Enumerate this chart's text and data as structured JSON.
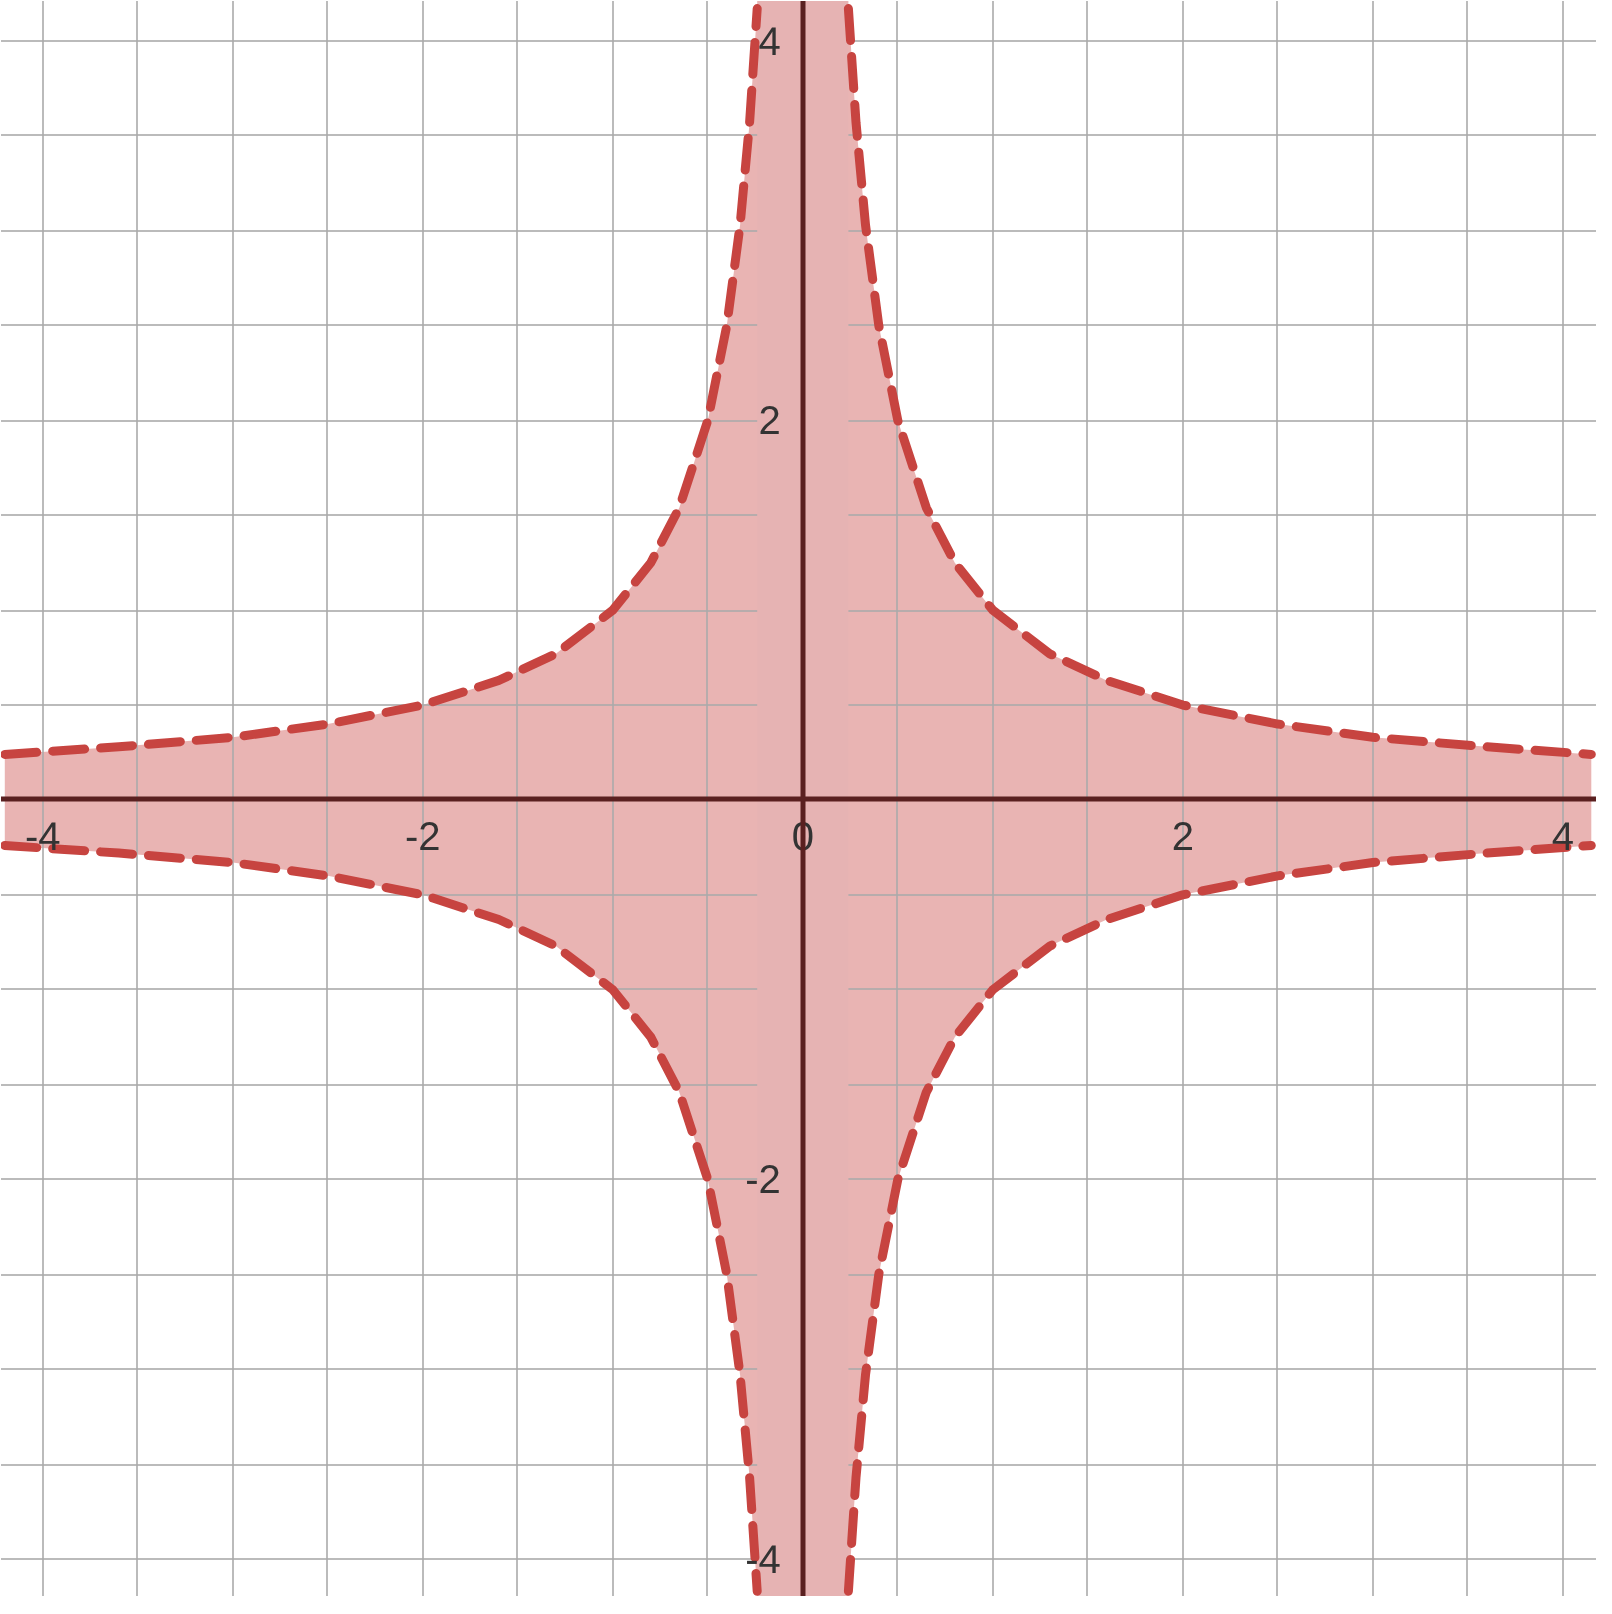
{
  "chart_data": {
    "type": "area",
    "x": [
      -4.2,
      -3.6,
      -3,
      -2.5,
      -2,
      -1.6,
      -1.3,
      -1,
      -0.8,
      -0.65,
      -0.5,
      -0.4,
      -0.33,
      -0.28,
      -0.24,
      0,
      0.24,
      0.28,
      0.33,
      0.4,
      0.5,
      0.65,
      0.8,
      1,
      1.3,
      1.6,
      2,
      2.5,
      3,
      3.6,
      4.15
    ],
    "series": [
      {
        "color": "#c74440",
        "values": [
          0.24,
          0.28,
          0.33,
          0.4,
          0.5,
          0.63,
          0.77,
          1,
          1.25,
          1.54,
          2,
          2.5,
          3.03,
          3.57,
          4.17,
          null,
          4.17,
          3.57,
          3.03,
          2.5,
          2,
          1.54,
          1.25,
          1,
          0.77,
          0.63,
          0.5,
          0.4,
          0.33,
          0.28,
          0.24
        ]
      },
      {
        "color": "#c74440",
        "values": [
          -0.24,
          -0.28,
          -0.33,
          -0.4,
          -0.5,
          -0.63,
          -0.77,
          -1,
          -1.25,
          -1.54,
          -2,
          -2.5,
          -3.03,
          -3.57,
          -4.17,
          null,
          -4.17,
          -3.57,
          -3.03,
          -2.5,
          -2,
          -1.54,
          -1.25,
          -1,
          -0.77,
          -0.63,
          -0.5,
          -0.4,
          -0.33,
          -0.28,
          -0.24
        ]
      }
    ],
    "bands": [
      {
        "axis": "x",
        "from": -0.24,
        "to": 0.24,
        "color": "#e6b3b3"
      }
    ],
    "line_style": "dashed",
    "grid": true,
    "xlim": [
      -4.22,
      4.18
    ],
    "ylim": [
      -4.2,
      4.21
    ],
    "xticks": [
      {
        "value": -4,
        "label": "-4"
      },
      {
        "value": -3.5,
        "label": null
      },
      {
        "value": -3,
        "label": null
      },
      {
        "value": -2.5,
        "label": null
      },
      {
        "value": -2,
        "label": "-2"
      },
      {
        "value": -1.5,
        "label": null
      },
      {
        "value": -1,
        "label": null
      },
      {
        "value": -0.5,
        "label": null
      },
      {
        "value": 0,
        "label": "0"
      },
      {
        "value": 0.5,
        "label": null
      },
      {
        "value": 1,
        "label": null
      },
      {
        "value": 1.5,
        "label": null
      },
      {
        "value": 2,
        "label": "2"
      },
      {
        "value": 2.5,
        "label": null
      },
      {
        "value": 3,
        "label": null
      },
      {
        "value": 3.5,
        "label": null
      },
      {
        "value": 4,
        "label": "4"
      }
    ],
    "yticks": [
      {
        "value": -4,
        "label": "-4"
      },
      {
        "value": -3.5,
        "label": null
      },
      {
        "value": -3,
        "label": null
      },
      {
        "value": -2.5,
        "label": null
      },
      {
        "value": -2,
        "label": "-2"
      },
      {
        "value": -1.5,
        "label": null
      },
      {
        "value": -1,
        "label": null
      },
      {
        "value": -0.5,
        "label": null
      },
      {
        "value": 0.5,
        "label": null
      },
      {
        "value": 1,
        "label": null
      },
      {
        "value": 1.5,
        "label": null
      },
      {
        "value": 2,
        "label": "2"
      },
      {
        "value": 2.5,
        "label": null
      },
      {
        "value": 3,
        "label": null
      },
      {
        "value": 3.5,
        "label": null
      },
      {
        "value": 4,
        "label": "4"
      }
    ]
  }
}
